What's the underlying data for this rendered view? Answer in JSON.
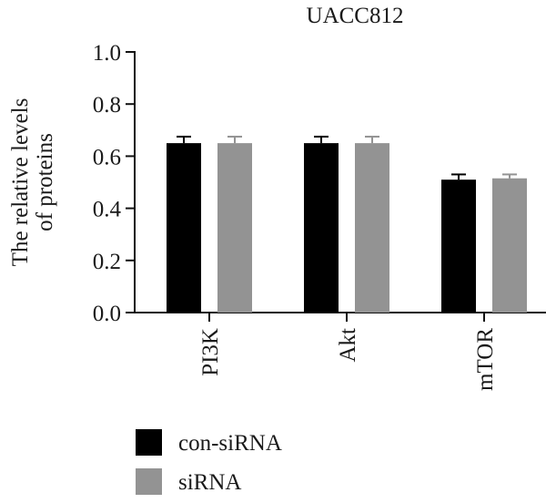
{
  "chart_data": {
    "type": "bar",
    "title": "UACC812",
    "ylabel_lines": [
      "The relative levels",
      "of proteins"
    ],
    "xlabel": "",
    "ylim": [
      0,
      1.0
    ],
    "yticks": [
      "0.0",
      "0.2",
      "0.4",
      "0.6",
      "0.8",
      "1.0"
    ],
    "categories": [
      "PI3K",
      "Akt",
      "mTOR"
    ],
    "series": [
      {
        "name": "con-siRNA",
        "color": "#000000",
        "values": [
          0.65,
          0.65,
          0.51
        ],
        "errors": [
          0.025,
          0.025,
          0.02
        ]
      },
      {
        "name": "siRNA",
        "color": "#939393",
        "values": [
          0.65,
          0.65,
          0.515
        ],
        "errors": [
          0.025,
          0.025,
          0.015
        ]
      }
    ],
    "legend_position": "bottom-left",
    "grid": false
  }
}
